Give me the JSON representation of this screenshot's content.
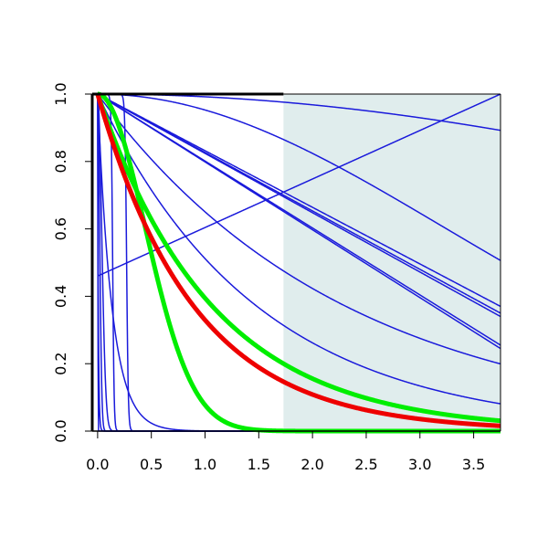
{
  "chart_data": {
    "type": "line",
    "title": "",
    "xlabel": "",
    "ylabel": "",
    "xlim": [
      -0.05,
      3.75
    ],
    "ylim": [
      0,
      1
    ],
    "grid": false,
    "legend": "none",
    "x_ticks": [
      "0.0",
      "0.5",
      "1.0",
      "1.5",
      "2.0",
      "2.5",
      "3.0",
      "3.5"
    ],
    "y_ticks": [
      "0.0",
      "0.2",
      "0.4",
      "0.6",
      "0.8",
      "1.0"
    ],
    "shaded_region": {
      "x": [
        1.73,
        3.75
      ],
      "y": [
        0,
        1
      ],
      "color": "#e0eded"
    },
    "series": [
      {
        "kind": "linear",
        "from": 1,
        "to": 0.37,
        "color": "#1a1adb",
        "width": 1.5
      },
      {
        "kind": "linear",
        "from": 1,
        "to": 0.35,
        "color": "#1a1adb",
        "width": 1.5
      },
      {
        "kind": "linear",
        "from": 1,
        "to": 0.34,
        "color": "#1a1adb",
        "width": 1.5
      },
      {
        "kind": "linear",
        "from": 1,
        "to": 0.255,
        "color": "#1a1adb",
        "width": 1.5
      },
      {
        "kind": "linear",
        "from": 1,
        "to": 0.245,
        "color": "#1a1adb",
        "width": 1.5
      },
      {
        "kind": "linear",
        "from": 0.46,
        "to": 1.0,
        "color": "#1a1adb",
        "width": 1.5
      },
      {
        "kind": "decay",
        "a": 1,
        "b": 0.43,
        "color": "#1a1adb",
        "width": 1.5
      },
      {
        "kind": "decay",
        "a": 1,
        "b": 0.67,
        "color": "#1a1adb",
        "width": 1.5
      },
      {
        "kind": "decay",
        "a": 2,
        "b": 0.22,
        "color": "#1a1adb",
        "width": 1.5
      },
      {
        "kind": "decay",
        "a": 2,
        "b": 0.09,
        "color": "#1a1adb",
        "width": 1.5
      },
      {
        "kind": "decay",
        "a": 1,
        "b": 7.5,
        "color": "#1a1adb",
        "width": 1.5
      },
      {
        "kind": "decay",
        "a": 2,
        "b": 19,
        "color": "#1a1adb",
        "width": 1.5
      },
      {
        "kind": "decay",
        "a": 2,
        "b": 37,
        "color": "#1a1adb",
        "width": 1.5
      },
      {
        "kind": "decay",
        "a": 2,
        "b": 300,
        "color": "#1a1adb",
        "width": 1.5
      },
      {
        "kind": "decay",
        "a": 1,
        "b": 150,
        "color": "#1a1adb",
        "width": 1.5
      },
      {
        "kind": "step",
        "center": 0.14,
        "steep": 150,
        "color": "#1a1adb",
        "width": 1.5
      },
      {
        "kind": "step",
        "center": 0.27,
        "steep": 130,
        "color": "#1a1adb",
        "width": 1.5
      },
      {
        "kind": "decay",
        "a": 1,
        "b": 0.93,
        "color": "#00ee00",
        "width": 5
      },
      {
        "kind": "decay",
        "a": 2,
        "b": 1.6,
        "color": "#00ee00",
        "width": 5
      },
      {
        "kind": "decay",
        "a": 1,
        "b": 1.11,
        "color": "#ee0000",
        "width": 5
      }
    ]
  }
}
